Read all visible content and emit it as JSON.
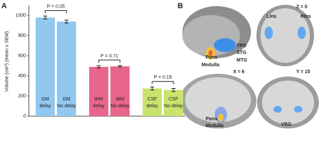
{
  "chart_data": {
    "type": "bar",
    "panel_label": "A",
    "y_label": "Volume (cm³) (mean ± SEM)",
    "categories": [
      [
        "GM",
        "delay"
      ],
      [
        "GM",
        "No delay"
      ],
      [
        "WM",
        "delay"
      ],
      [
        "WM",
        "No delay"
      ],
      [
        "CSF",
        "delay"
      ],
      [
        "CSF",
        "No delay"
      ]
    ],
    "values": [
      980,
      940,
      490,
      495,
      275,
      260
    ],
    "errors": [
      15,
      15,
      12,
      8,
      15,
      15
    ],
    "colors": [
      "#92c8f0",
      "#92c8f0",
      "#e8668c",
      "#e8668c",
      "#c9e36e",
      "#c9e36e"
    ],
    "ylim": [
      0,
      1100
    ],
    "yticks": [
      0,
      200,
      400,
      600,
      800,
      1000
    ],
    "annotations": [
      "P = 0.05",
      "P = 0.71",
      "P = 0.19"
    ]
  },
  "brain_panel": {
    "label": "B",
    "labels": [
      "Z = 0",
      "LIns",
      "RIns",
      "TPO",
      "STG",
      "MTG",
      "Pons",
      "Medulla",
      "X = 6",
      "Y = 15",
      "Pons",
      "Medulla",
      "VBG"
    ]
  }
}
